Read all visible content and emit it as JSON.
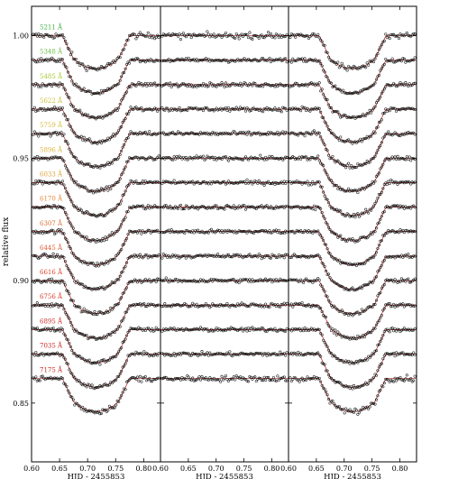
{
  "chart_data": {
    "type": "scatter",
    "ylabel": "relative flux",
    "ylim": [
      0.826,
      1.012
    ],
    "yticks": [
      1.0,
      0.95,
      0.9,
      0.85
    ],
    "ytick_labels": [
      "1.00",
      "0.95",
      "0.90",
      "0.85"
    ],
    "panels": [
      {
        "kind": "transit",
        "xlabel": "HJD - 2455853",
        "xlim": [
          0.6,
          0.83
        ],
        "xticks": [
          0.6,
          0.65,
          0.7,
          0.75,
          0.8
        ],
        "xtick_labels": [
          "0.60",
          "0.65",
          "0.70",
          "0.75",
          "0.80"
        ]
      },
      {
        "kind": "residual",
        "xlabel": "HJD - 2455853",
        "xlim": [
          0.6,
          0.83
        ],
        "xticks": [
          0.6,
          0.65,
          0.7,
          0.75,
          0.8
        ],
        "xtick_labels": [
          "0.60",
          "0.65",
          "0.70",
          "0.75",
          "0.80"
        ]
      },
      {
        "kind": "transit",
        "xlabel": "HJD - 2455853",
        "xlim": [
          0.6,
          0.83
        ],
        "xticks": [
          0.6,
          0.65,
          0.7,
          0.75,
          0.8
        ],
        "xtick_labels": [
          "0.60",
          "0.65",
          "0.70",
          "0.75",
          "0.80"
        ]
      }
    ],
    "transit": {
      "ingress_start": 0.655,
      "ingress_end": 0.675,
      "egress_start": 0.755,
      "egress_end": 0.775,
      "depth": 0.0135
    },
    "series": [
      {
        "name": "5211 Å",
        "baseline": 1.0,
        "color": "#3cb043"
      },
      {
        "name": "5348 Å",
        "baseline": 0.99,
        "color": "#6cc24a"
      },
      {
        "name": "5485 Å",
        "baseline": 0.98,
        "color": "#a8c838"
      },
      {
        "name": "5622 Å",
        "baseline": 0.97,
        "color": "#c9c33a"
      },
      {
        "name": "5759 Å",
        "baseline": 0.96,
        "color": "#d8bc3a"
      },
      {
        "name": "5896 Å",
        "baseline": 0.95,
        "color": "#dcb23c"
      },
      {
        "name": "6033 Å",
        "baseline": 0.94,
        "color": "#e0a03c"
      },
      {
        "name": "6170 Å",
        "baseline": 0.93,
        "color": "#e08838"
      },
      {
        "name": "6307 Å",
        "baseline": 0.92,
        "color": "#e07034"
      },
      {
        "name": "6445 Å",
        "baseline": 0.91,
        "color": "#dd5a30"
      },
      {
        "name": "6616 Å",
        "baseline": 0.9,
        "color": "#d9472c"
      },
      {
        "name": "6756 Å",
        "baseline": 0.89,
        "color": "#d53a2a"
      },
      {
        "name": "6895 Å",
        "baseline": 0.88,
        "color": "#d13028"
      },
      {
        "name": "7035 Å",
        "baseline": 0.87,
        "color": "#cc2826"
      },
      {
        "name": "7175 Å",
        "baseline": 0.86,
        "color": "#c82424"
      }
    ],
    "model_line_color": "#b22222",
    "point_color": "#111111",
    "grid": false
  }
}
